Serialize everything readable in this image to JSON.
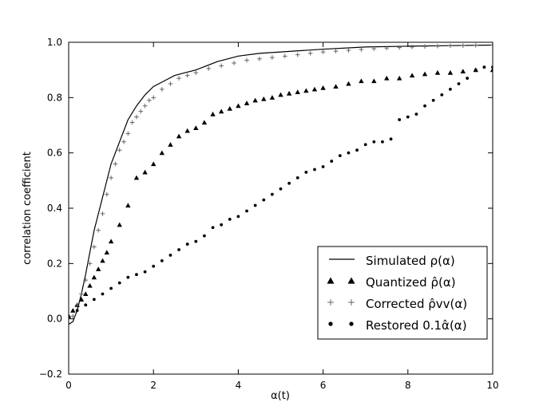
{
  "chart_data": {
    "type": "scatter",
    "xlabel": "α(t)",
    "ylabel": "correlation coefficient",
    "xlim": [
      0,
      10
    ],
    "ylim": [
      -0.2,
      1.0
    ],
    "x_ticks": [
      "0",
      "2",
      "4",
      "6",
      "8",
      "10"
    ],
    "y_ticks": [
      "−0.2",
      "0.0",
      "0.2",
      "0.4",
      "0.6",
      "0.8",
      "1.0"
    ],
    "legend_position": "lower-right",
    "series": [
      {
        "name": "Simulated ρ(α)",
        "marker": "line",
        "x": [
          0.0,
          0.1,
          0.2,
          0.3,
          0.4,
          0.5,
          0.6,
          0.8,
          1.0,
          1.2,
          1.4,
          1.6,
          1.8,
          2.0,
          2.25,
          2.5,
          2.75,
          3.0,
          3.5,
          4.0,
          4.5,
          5.0,
          6.0,
          7.0,
          8.0,
          9.0,
          10.0
        ],
        "y": [
          -0.02,
          -0.01,
          0.03,
          0.09,
          0.16,
          0.24,
          0.32,
          0.44,
          0.56,
          0.64,
          0.72,
          0.77,
          0.81,
          0.84,
          0.86,
          0.88,
          0.89,
          0.9,
          0.93,
          0.95,
          0.96,
          0.965,
          0.975,
          0.983,
          0.986,
          0.988,
          0.99
        ]
      },
      {
        "name": "Quantized ρ̂(α)",
        "marker": "triangle",
        "x": [
          0.0,
          0.1,
          0.2,
          0.3,
          0.4,
          0.5,
          0.6,
          0.7,
          0.8,
          0.9,
          1.0,
          1.2,
          1.4,
          1.6,
          1.8,
          2.0,
          2.2,
          2.4,
          2.6,
          2.8,
          3.0,
          3.2,
          3.4,
          3.6,
          3.8,
          4.0,
          4.2,
          4.4,
          4.6,
          4.8,
          5.0,
          5.2,
          5.4,
          5.6,
          5.8,
          6.0,
          6.3,
          6.6,
          6.9,
          7.2,
          7.5,
          7.8,
          8.1,
          8.4,
          8.7,
          9.0,
          9.3,
          9.6,
          10.0
        ],
        "y": [
          0.01,
          0.03,
          0.05,
          0.07,
          0.09,
          0.12,
          0.15,
          0.18,
          0.21,
          0.24,
          0.28,
          0.34,
          0.41,
          0.51,
          0.53,
          0.56,
          0.6,
          0.63,
          0.66,
          0.68,
          0.69,
          0.71,
          0.74,
          0.75,
          0.76,
          0.77,
          0.78,
          0.79,
          0.795,
          0.8,
          0.81,
          0.815,
          0.82,
          0.825,
          0.83,
          0.835,
          0.84,
          0.85,
          0.86,
          0.86,
          0.87,
          0.87,
          0.88,
          0.885,
          0.89,
          0.89,
          0.895,
          0.9,
          0.9
        ]
      },
      {
        "name": "Corrected ρ̂vv(α)",
        "marker": "plus",
        "x": [
          0.1,
          0.2,
          0.3,
          0.4,
          0.5,
          0.6,
          0.7,
          0.8,
          0.9,
          1.0,
          1.1,
          1.2,
          1.3,
          1.4,
          1.5,
          1.6,
          1.7,
          1.8,
          1.9,
          2.0,
          2.2,
          2.4,
          2.6,
          2.8,
          3.0,
          3.3,
          3.6,
          3.9,
          4.2,
          4.5,
          4.8,
          5.1,
          5.4,
          5.7,
          6.0,
          6.3,
          6.6,
          6.9,
          7.2,
          7.5,
          7.8,
          8.1,
          8.4,
          8.7,
          9.0,
          9.3,
          9.6,
          10.0
        ],
        "y": [
          0.01,
          0.05,
          0.09,
          0.14,
          0.2,
          0.26,
          0.32,
          0.38,
          0.45,
          0.51,
          0.56,
          0.61,
          0.64,
          0.67,
          0.71,
          0.73,
          0.75,
          0.77,
          0.79,
          0.8,
          0.83,
          0.85,
          0.87,
          0.88,
          0.89,
          0.905,
          0.915,
          0.925,
          0.935,
          0.94,
          0.945,
          0.95,
          0.955,
          0.96,
          0.965,
          0.968,
          0.971,
          0.974,
          0.977,
          0.979,
          0.981,
          0.983,
          0.985,
          0.986,
          0.987,
          0.988,
          0.989,
          0.99
        ]
      },
      {
        "name": "Restored 0.1α̂(α)",
        "marker": "circle",
        "x": [
          0.2,
          0.4,
          0.6,
          0.8,
          1.0,
          1.2,
          1.4,
          1.6,
          1.8,
          2.0,
          2.2,
          2.4,
          2.6,
          2.8,
          3.0,
          3.2,
          3.4,
          3.6,
          3.8,
          4.0,
          4.2,
          4.4,
          4.6,
          4.8,
          5.0,
          5.2,
          5.4,
          5.6,
          5.8,
          6.0,
          6.2,
          6.4,
          6.6,
          6.8,
          7.0,
          7.2,
          7.4,
          7.6,
          7.8,
          8.0,
          8.2,
          8.4,
          8.6,
          8.8,
          9.0,
          9.2,
          9.4,
          9.6,
          9.8,
          10.0
        ],
        "y": [
          0.03,
          0.05,
          0.07,
          0.09,
          0.11,
          0.13,
          0.15,
          0.16,
          0.17,
          0.19,
          0.21,
          0.23,
          0.25,
          0.27,
          0.28,
          0.3,
          0.33,
          0.34,
          0.36,
          0.37,
          0.39,
          0.41,
          0.43,
          0.45,
          0.47,
          0.49,
          0.51,
          0.53,
          0.54,
          0.55,
          0.57,
          0.59,
          0.6,
          0.61,
          0.63,
          0.64,
          0.64,
          0.65,
          0.72,
          0.73,
          0.74,
          0.77,
          0.79,
          0.81,
          0.83,
          0.85,
          0.87,
          0.9,
          0.91,
          0.91
        ]
      }
    ]
  }
}
